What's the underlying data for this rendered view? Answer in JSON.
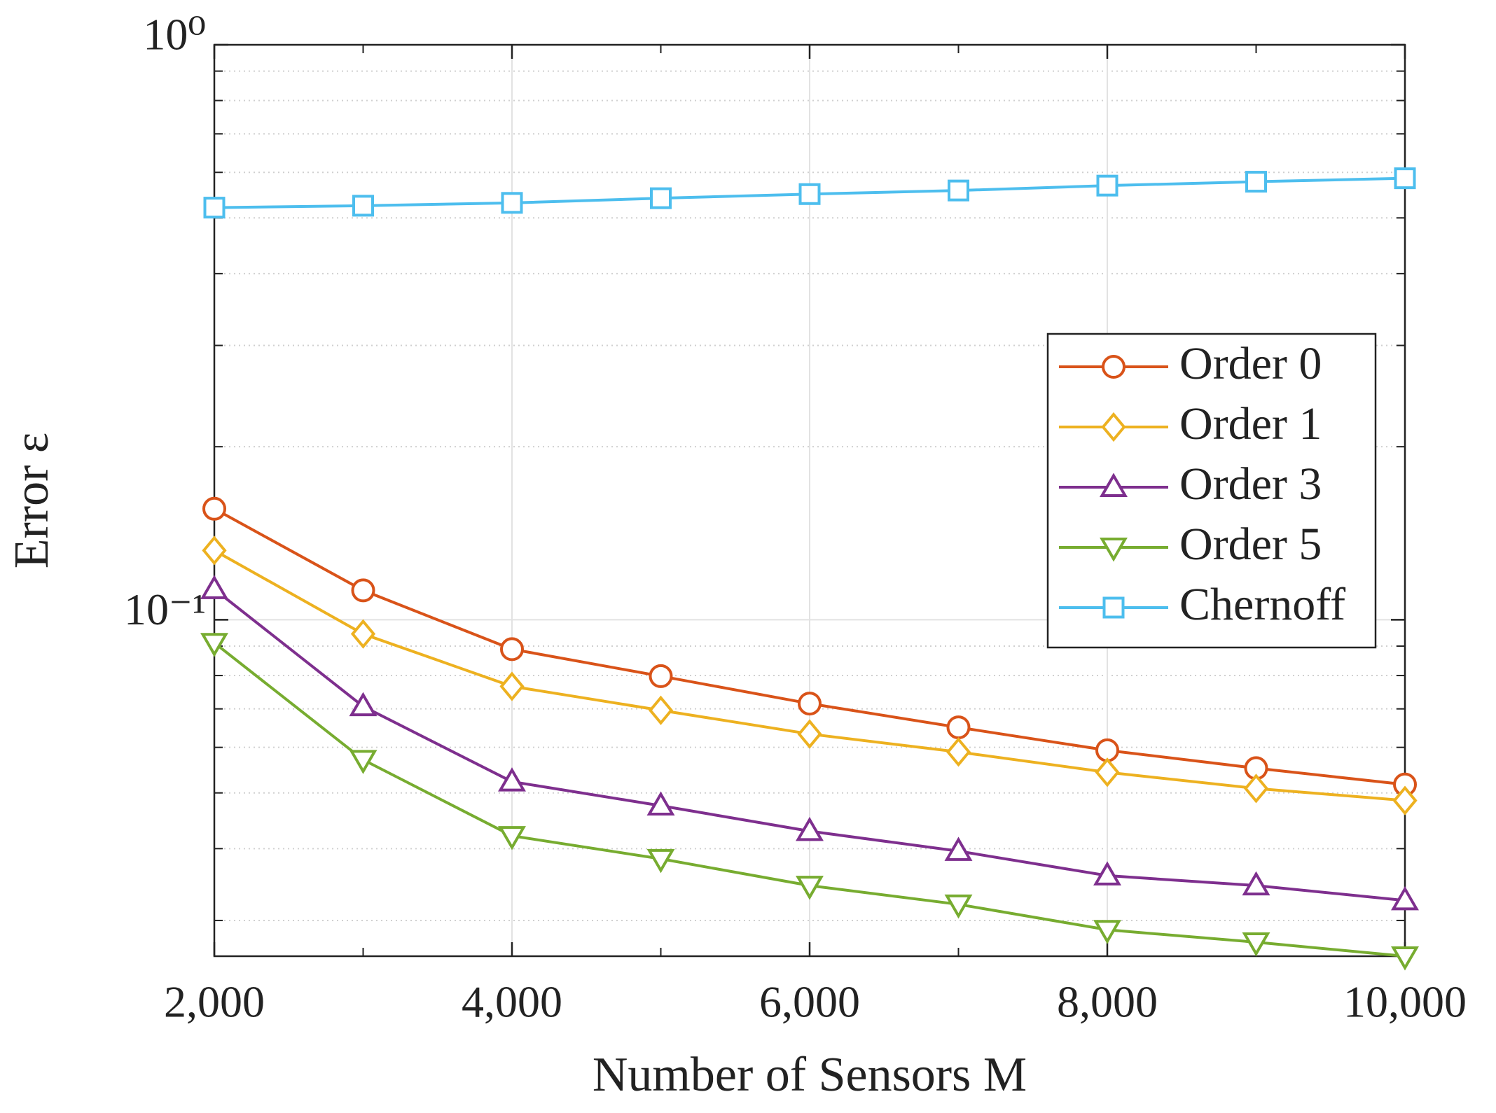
{
  "chart_data": {
    "type": "line",
    "xlabel": "Number of Sensors M",
    "ylabel": "Error ε",
    "x": [
      2000,
      3000,
      4000,
      5000,
      6000,
      7000,
      8000,
      9000,
      10000
    ],
    "xlim": [
      2000,
      10000
    ],
    "xticks": [
      {
        "value": 2000,
        "label": "2,000"
      },
      {
        "value": 4000,
        "label": "4,000"
      },
      {
        "value": 6000,
        "label": "6,000"
      },
      {
        "value": 8000,
        "label": "8,000"
      },
      {
        "value": 10000,
        "label": "10,000"
      }
    ],
    "ylim": [
      0.026,
      1
    ],
    "yticks": [
      {
        "value": 0.1,
        "label": "10⁻¹"
      },
      {
        "value": 1,
        "label": "10⁰"
      }
    ],
    "log_y": true,
    "grid": true,
    "minor_grid": true,
    "legend": "east",
    "series": [
      {
        "name": "Order 0",
        "color": "#d95319",
        "marker": "circle",
        "values": [
          0.156,
          0.1125,
          0.0889,
          0.0798,
          0.0715,
          0.065,
          0.0593,
          0.0552,
          0.0517
        ]
      },
      {
        "name": "Order 1",
        "color": "#edb120",
        "marker": "diamond",
        "values": [
          0.132,
          0.0945,
          0.0766,
          0.0696,
          0.0633,
          0.0589,
          0.0543,
          0.0509,
          0.0485
        ]
      },
      {
        "name": "Order 3",
        "color": "#7e2f8e",
        "marker": "triangle-up",
        "values": [
          0.113,
          0.0707,
          0.0523,
          0.0475,
          0.0429,
          0.0396,
          0.0359,
          0.0345,
          0.0325
        ]
      },
      {
        "name": "Order 5",
        "color": "#77ac30",
        "marker": "triangle-down",
        "values": [
          0.0912,
          0.0571,
          0.0421,
          0.0384,
          0.0345,
          0.032,
          0.0289,
          0.0275,
          0.026
        ]
      },
      {
        "name": "Chernoff",
        "color": "#4dbeee",
        "marker": "square",
        "values": [
          0.521,
          0.525,
          0.531,
          0.541,
          0.55,
          0.558,
          0.569,
          0.578,
          0.586
        ]
      }
    ]
  }
}
